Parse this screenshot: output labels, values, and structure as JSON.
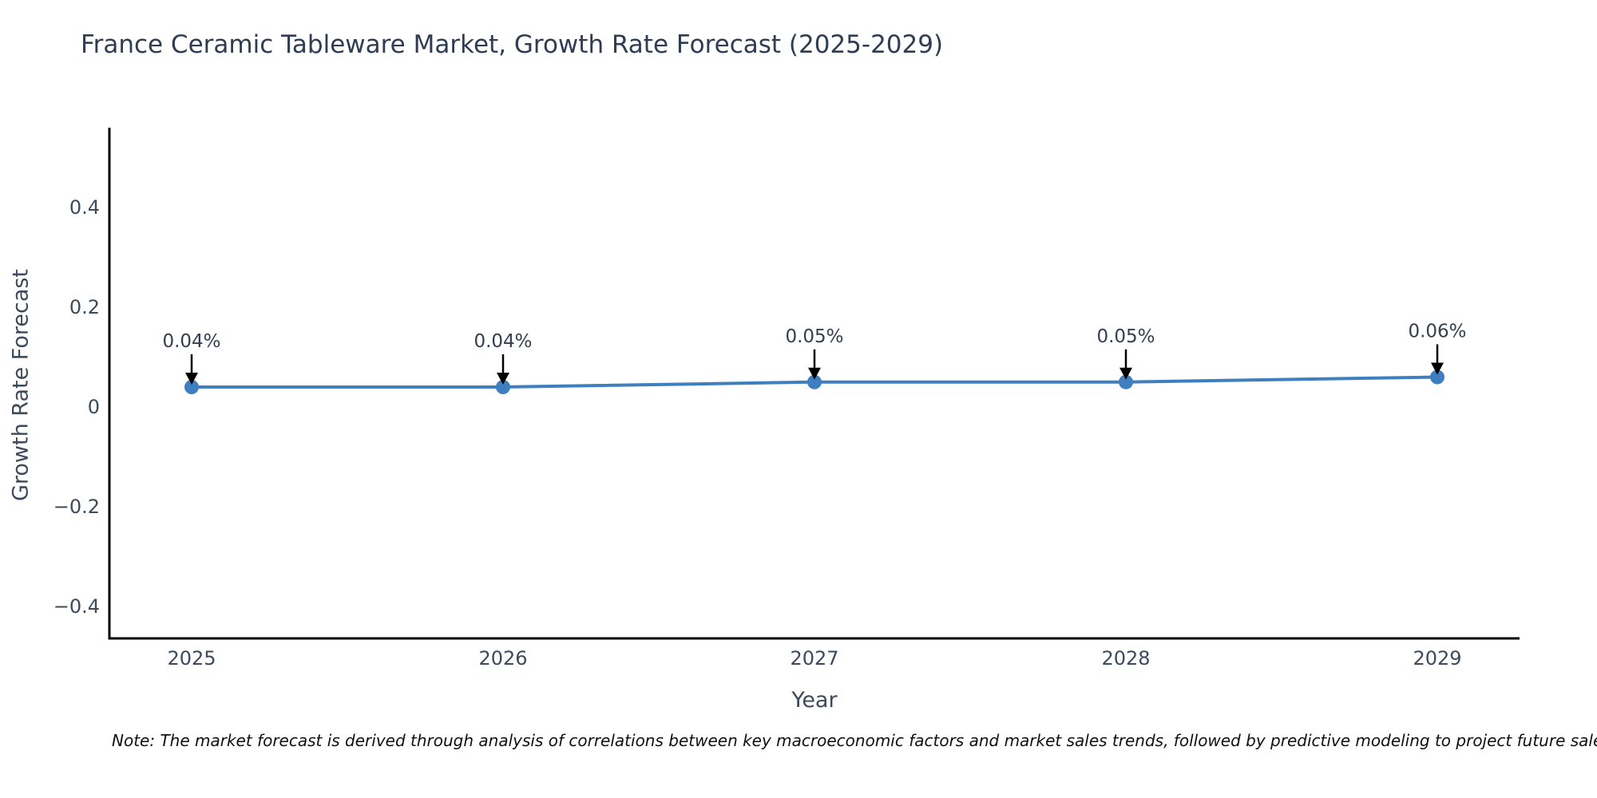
{
  "title": "France Ceramic Tableware Market, Growth Rate Forecast (2025-2029)",
  "note": "Note: The market forecast is derived through analysis of correlations between key macroeconomic factors and market sales trends, followed by predictive modeling to project future sales",
  "chart_data": {
    "type": "line",
    "title": "France Ceramic Tableware Market, Growth Rate Forecast (2025-2029)",
    "xlabel": "Year",
    "ylabel": "Growth Rate Forecast",
    "x": [
      2025,
      2026,
      2027,
      2028,
      2029
    ],
    "values": [
      0.04,
      0.04,
      0.05,
      0.05,
      0.06
    ],
    "point_labels": [
      "0.04%",
      "0.04%",
      "0.05%",
      "0.05%",
      "0.06%"
    ],
    "xtick_labels": [
      "2025",
      "2026",
      "2027",
      "2028",
      "2029"
    ],
    "yticks": [
      0.4,
      0.2,
      0,
      -0.2,
      -0.4
    ],
    "ytick_labels": [
      "0.4",
      "0.2",
      "0",
      "−0.2",
      "−0.4"
    ],
    "ylim": [
      -0.46,
      0.56
    ],
    "grid": false,
    "legend": "none",
    "annotation_style": "black-down-arrow",
    "colors": {
      "line": "#3f7fbf",
      "marker": "#3f7fbf",
      "axis": "#000000",
      "arrow": "#000000",
      "title_text": "#2e3d54",
      "tick_text": "#3d4a5c",
      "annotation_text": "#333f4f",
      "note_text": "#111111",
      "background": "#ffffff"
    }
  }
}
